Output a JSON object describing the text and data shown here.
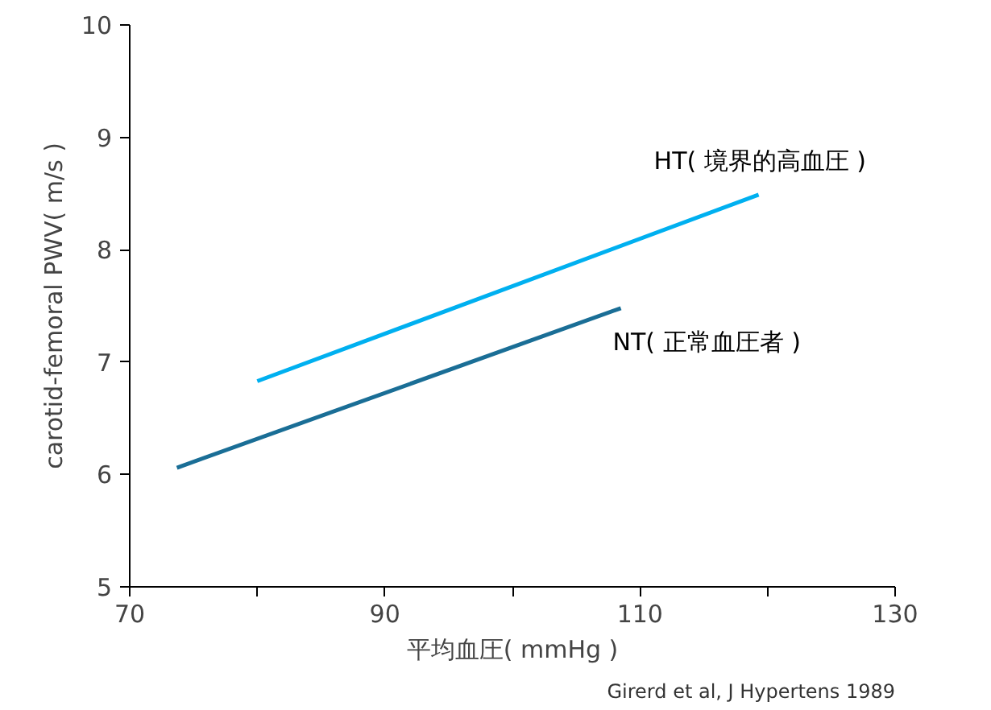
{
  "chart_data": {
    "type": "line",
    "xlabel": "平均血圧( mmHg )",
    "ylabel": "carotid-femoral PWV( m/s )",
    "series": [
      {
        "name": "HT( 境界的高血圧 )",
        "color": "#00b0f0",
        "x": [
          80,
          119.3
        ],
        "values": [
          6.83,
          8.49
        ]
      },
      {
        "name": "NT( 正常血圧者 )",
        "color": "#1a6e96",
        "x": [
          73.7,
          108.5
        ],
        "values": [
          6.06,
          7.48
        ]
      }
    ],
    "xlim": [
      70,
      130
    ],
    "ylim": [
      5,
      10
    ],
    "xticks": [
      70,
      {
        "value": 80,
        "label": null
      },
      90,
      {
        "value": 100,
        "label": null
      },
      110,
      {
        "value": 120,
        "label": null
      },
      130
    ],
    "yticks": [
      5,
      6,
      7,
      8,
      9,
      10
    ],
    "grid": false,
    "marker": "none",
    "line_style": "solid",
    "annotations": [
      "Girerd et al, J Hypertens 1989"
    ]
  }
}
